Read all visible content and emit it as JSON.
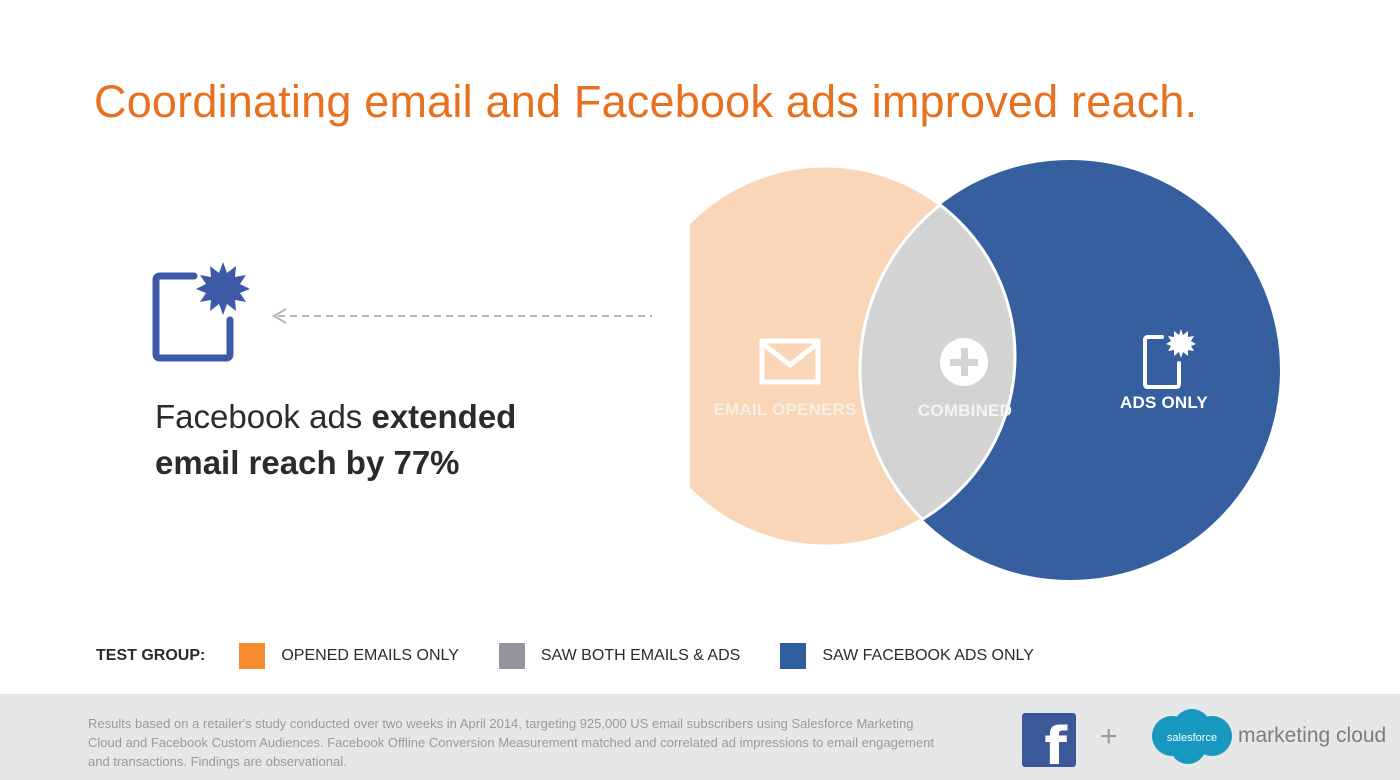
{
  "title": "Coordinating email and Facebook ads improved reach.",
  "claim": {
    "line1_normal": "Facebook ads ",
    "line1_bold": "extended",
    "line2_bold": "email reach by 77%"
  },
  "venn": {
    "openers_label": "EMAIL OPENERS",
    "combined_label": "COMBINED",
    "ads_label": "ADS ONLY",
    "icons": {
      "openers": "envelope-icon",
      "combined": "plus-circle-icon",
      "ads": "ad-burst-icon"
    }
  },
  "legend": {
    "title": "TEST GROUP:",
    "items": [
      {
        "label": "OPENED EMAILS ONLY",
        "color": "#f58d2e"
      },
      {
        "label": "SAW BOTH EMAILS & ADS",
        "color": "#939598"
      },
      {
        "label": "SAW FACEBOOK ADS ONLY",
        "color": "#2f5d9f"
      }
    ]
  },
  "colors": {
    "title": "#e8711f",
    "openers_fill": "#f9d6b8",
    "combined_fill": "#d3d3d3",
    "ads_fill": "#355f9f",
    "icon_blue": "#3e5aa6"
  },
  "footer": {
    "footnote": "Results based on a retailer's study conducted over two weeks in April 2014, targeting 925,000 US email subscribers using Salesforce Marketing Cloud and Facebook Custom Audiences. Facebook Offline Conversion Measurement matched and correlated ad impressions to email engagement and transactions. Findings are observational.",
    "plus": "+",
    "salesforce_word": "salesforce",
    "marketing_cloud": "marketing cloud"
  }
}
